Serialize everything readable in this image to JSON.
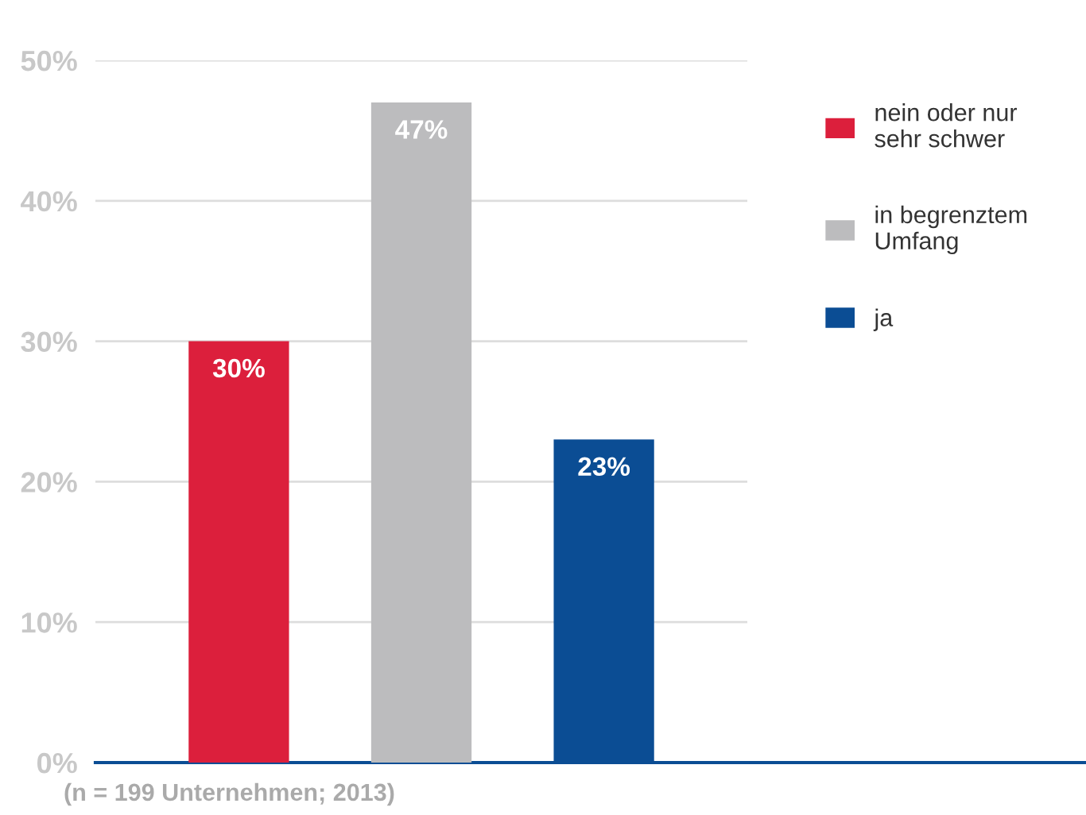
{
  "chart_data": {
    "type": "bar",
    "categories": [
      null
    ],
    "series": [
      {
        "name": "nein oder nur\nsehr schwer",
        "color": "#dc1f3c",
        "values": [
          30
        ]
      },
      {
        "name": "in begrenztem\nUmfang",
        "color": "#bcbcbe",
        "values": [
          47
        ]
      },
      {
        "name": "ja",
        "color": "#0b4d94",
        "values": [
          23
        ]
      }
    ],
    "ylim": [
      0,
      50
    ],
    "yticks": [
      {
        "value": 0,
        "label": "0%"
      },
      {
        "value": 10,
        "label": "10%"
      },
      {
        "value": 20,
        "label": "20%"
      },
      {
        "value": 30,
        "label": "30%"
      },
      {
        "value": 40,
        "label": "40%"
      },
      {
        "value": 50,
        "label": "50%"
      }
    ],
    "value_labels": [
      [
        "30%"
      ],
      [
        "47%"
      ],
      [
        "23%"
      ]
    ],
    "grid": "y",
    "legend": "right",
    "annotations": [
      "(n = 199 Unternehmen; 2013)"
    ]
  }
}
